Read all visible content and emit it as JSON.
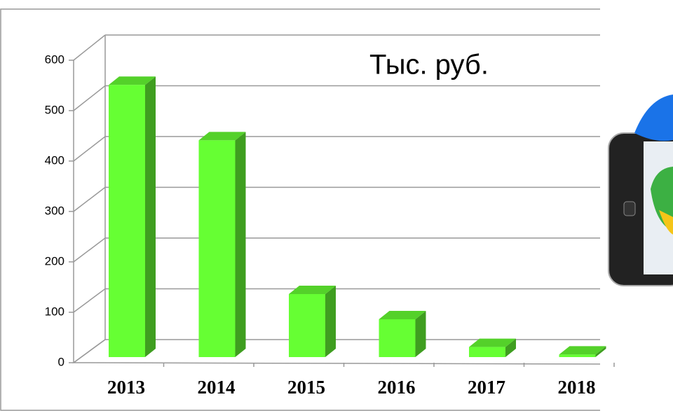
{
  "chart_data": {
    "type": "bar3d",
    "annotation": "Тыс. руб.",
    "categories": [
      "2013",
      "2014",
      "2015",
      "2016",
      "2017",
      "2018"
    ],
    "values": [
      540,
      430,
      125,
      75,
      20,
      5
    ],
    "color": "#66ff33",
    "ylim": [
      0,
      600
    ],
    "yticks": [
      0,
      100,
      200,
      300,
      400,
      500,
      600
    ],
    "grid": true
  }
}
